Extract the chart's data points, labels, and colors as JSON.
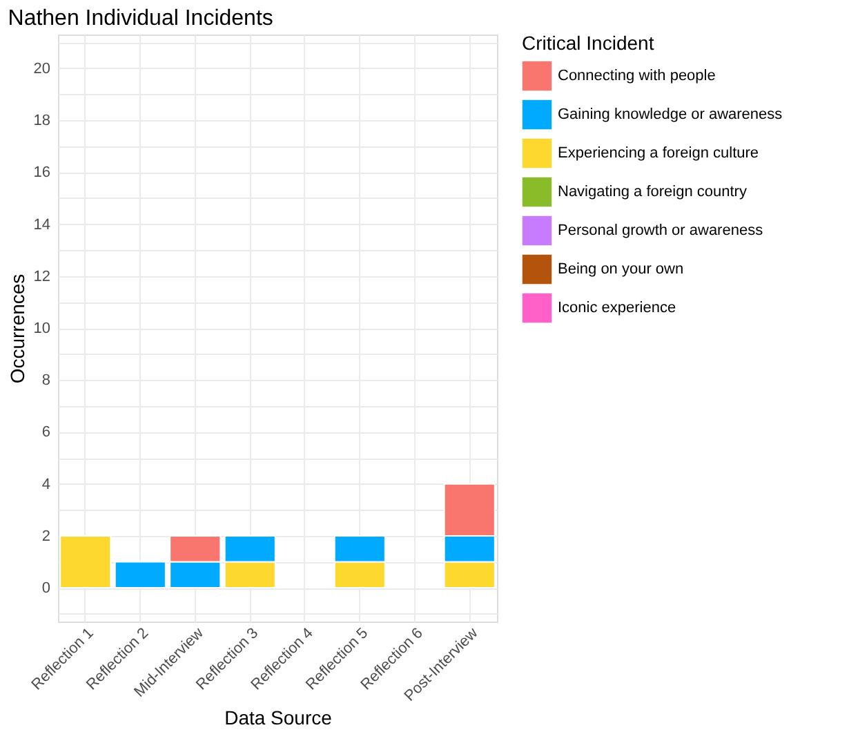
{
  "chart_data": {
    "type": "bar",
    "title": "Nathen Individual Incidents",
    "xlabel": "Data Source",
    "ylabel": "Occurrences",
    "legend_title": "Critical Incident",
    "categories": [
      "Reflection 1",
      "Reflection 2",
      "Mid-Interview",
      "Reflection 3",
      "Reflection 4",
      "Reflection 5",
      "Reflection 6",
      "Post-Interview"
    ],
    "stacked": true,
    "series": [
      {
        "name": "Iconic experience",
        "color": "#ff61c9",
        "values": [
          0,
          0,
          0,
          0,
          0,
          0,
          0,
          0
        ]
      },
      {
        "name": "Being on your own",
        "color": "#b4540c",
        "values": [
          0,
          0,
          0,
          0,
          0,
          0,
          0,
          0
        ]
      },
      {
        "name": "Personal growth or awareness",
        "color": "#c77cff",
        "values": [
          0,
          0,
          0,
          0,
          0,
          0,
          0,
          0
        ]
      },
      {
        "name": "Navigating a foreign country",
        "color": "#8abc2a",
        "values": [
          0,
          0,
          0,
          0,
          0,
          0,
          0,
          0
        ]
      },
      {
        "name": "Experiencing a foreign culture",
        "color": "#fdd82e",
        "values": [
          2,
          0,
          0,
          1,
          0,
          1,
          0,
          1
        ]
      },
      {
        "name": "Gaining knowledge or awareness",
        "color": "#00aaff",
        "values": [
          0,
          1,
          1,
          1,
          0,
          1,
          0,
          1
        ]
      },
      {
        "name": "Connecting with people",
        "color": "#f8766d",
        "values": [
          0,
          0,
          1,
          0,
          0,
          0,
          0,
          2
        ]
      }
    ],
    "ylim": [
      -1.3,
      21.3
    ],
    "yticks": [
      {
        "value": -1,
        "label": null
      },
      0,
      {
        "value": 1,
        "label": null
      },
      2,
      {
        "value": 3,
        "label": null
      },
      4,
      {
        "value": 5,
        "label": null
      },
      6,
      {
        "value": 7,
        "label": null
      },
      8,
      {
        "value": 9,
        "label": null
      },
      10,
      {
        "value": 11,
        "label": null
      },
      12,
      {
        "value": 13,
        "label": null
      },
      14,
      {
        "value": 15,
        "label": null
      },
      16,
      {
        "value": 17,
        "label": null
      },
      18,
      {
        "value": 19,
        "label": null
      },
      20,
      {
        "value": 21,
        "label": null
      }
    ],
    "grid": true,
    "legend": "right"
  }
}
